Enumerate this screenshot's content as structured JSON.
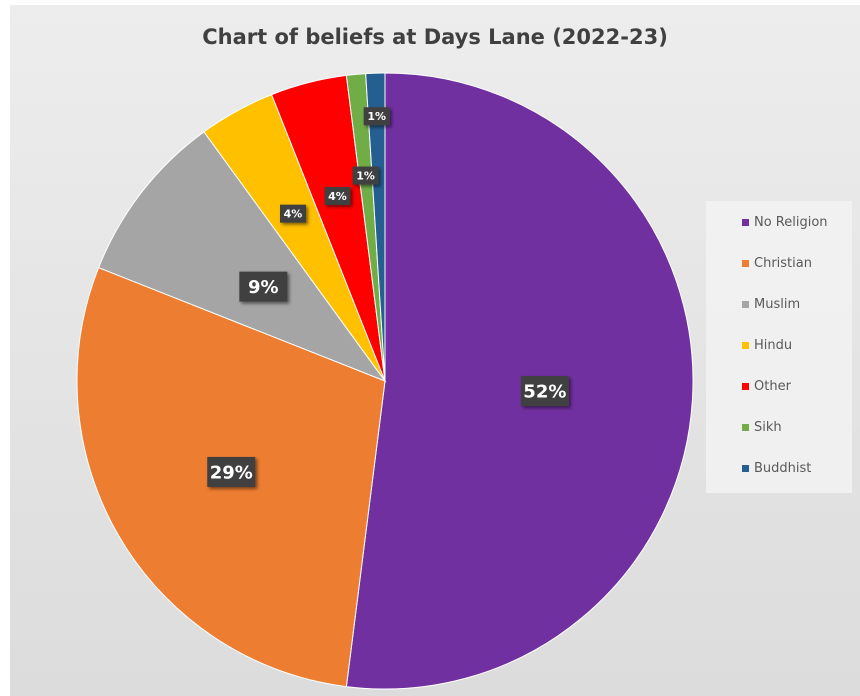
{
  "chart_data": {
    "type": "pie",
    "title": "Chart of beliefs at Days Lane (2022-23)",
    "slices": [
      {
        "label": "No Religion",
        "value": 52,
        "display": "52%",
        "color": "#7030a0"
      },
      {
        "label": "Christian",
        "value": 29,
        "display": "29%",
        "color": "#ed7d31"
      },
      {
        "label": "Muslim",
        "value": 9,
        "display": "9%",
        "color": "#a5a5a5"
      },
      {
        "label": "Hindu",
        "value": 4,
        "display": "4%",
        "color": "#ffc000"
      },
      {
        "label": "Other",
        "value": 4,
        "display": "4%",
        "color": "#ff0000"
      },
      {
        "label": "Sikh",
        "value": 1,
        "display": "1%",
        "color": "#70ad47"
      },
      {
        "label": "Buddhist",
        "value": 1,
        "display": "1%",
        "color": "#255e91"
      }
    ],
    "legend_position": "right"
  }
}
